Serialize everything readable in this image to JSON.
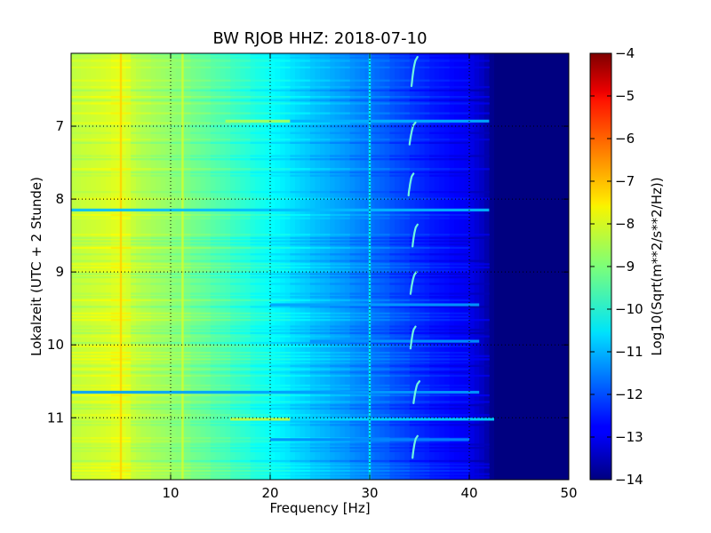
{
  "chart_data": {
    "type": "heatmap",
    "title": "BW RJOB HHZ: 2018-07-10",
    "xlabel": "Frequency [Hz]",
    "ylabel": "Lokalzeit (UTC + 2 Stunde)",
    "xlim": [
      0,
      50
    ],
    "ylim": [
      11.85,
      6.0
    ],
    "y_inverted": true,
    "grid": true,
    "x_ticks": [
      {
        "value": 10,
        "label": "10"
      },
      {
        "value": 20,
        "label": "20"
      },
      {
        "value": 30,
        "label": "30"
      },
      {
        "value": 40,
        "label": "40"
      },
      {
        "value": 50,
        "label": "50"
      }
    ],
    "y_ticks": [
      {
        "value": 7,
        "label": "7"
      },
      {
        "value": 8,
        "label": "8"
      },
      {
        "value": 9,
        "label": "9"
      },
      {
        "value": 10,
        "label": "10"
      },
      {
        "value": 11,
        "label": "11"
      }
    ],
    "colorbar": {
      "label": "Log10(Sqrt(m**2/s**2/Hz))",
      "colormap": "jet",
      "range": [
        -14,
        -4
      ],
      "ticks": [
        {
          "value": -4,
          "label": "−4"
        },
        {
          "value": -5,
          "label": "−5"
        },
        {
          "value": -6,
          "label": "−6"
        },
        {
          "value": -7,
          "label": "−7"
        },
        {
          "value": -8,
          "label": "−8"
        },
        {
          "value": -9,
          "label": "−9"
        },
        {
          "value": -10,
          "label": "−10"
        },
        {
          "value": -11,
          "label": "−11"
        },
        {
          "value": -12,
          "label": "−12"
        },
        {
          "value": -13,
          "label": "−13"
        },
        {
          "value": -14,
          "label": "−14"
        }
      ]
    },
    "spectrum_profile": [
      {
        "f": 0,
        "v": -8.4
      },
      {
        "f": 1,
        "v": -8.3
      },
      {
        "f": 3,
        "v": -8.2
      },
      {
        "f": 5,
        "v": -8.0
      },
      {
        "f": 7,
        "v": -8.5
      },
      {
        "f": 10,
        "v": -8.8
      },
      {
        "f": 13,
        "v": -9.2
      },
      {
        "f": 16,
        "v": -9.6
      },
      {
        "f": 20,
        "v": -10.2
      },
      {
        "f": 24,
        "v": -10.8
      },
      {
        "f": 28,
        "v": -11.3
      },
      {
        "f": 32,
        "v": -11.9
      },
      {
        "f": 36,
        "v": -12.5
      },
      {
        "f": 40,
        "v": -12.9
      },
      {
        "f": 41.5,
        "v": -13.4
      },
      {
        "f": 42.5,
        "v": -14.0
      },
      {
        "f": 50,
        "v": -14.0
      }
    ],
    "narrowband_lines": [
      {
        "f": 5.0,
        "v": -7.3
      },
      {
        "f": 11.2,
        "v": -8.2
      },
      {
        "f": 30.0,
        "v": -10.3
      }
    ],
    "bright_bands": [
      {
        "t": 6.93,
        "f_from": 15.5,
        "f_to": 22,
        "v": -8.6
      },
      {
        "t": 6.93,
        "f_from": 22,
        "f_to": 42,
        "v": -11.0
      },
      {
        "t": 8.15,
        "f_from": 0,
        "f_to": 42,
        "v": -10.9
      },
      {
        "t": 9.45,
        "f_from": 20,
        "f_to": 41,
        "v": -11.2
      },
      {
        "t": 9.95,
        "f_from": 24,
        "f_to": 41,
        "v": -11.3
      },
      {
        "t": 10.65,
        "f_from": 0,
        "f_to": 41,
        "v": -11.2
      },
      {
        "t": 11.02,
        "f_from": 16,
        "f_to": 22,
        "v": -8.3
      },
      {
        "t": 11.02,
        "f_from": 22,
        "f_to": 42.5,
        "v": -10.6
      },
      {
        "t": 11.3,
        "f_from": 20,
        "f_to": 40,
        "v": -11.4
      }
    ],
    "chirps": [
      {
        "t_start": 6.05,
        "t_end": 6.45,
        "f_start": 34.8,
        "f_end": 34.2
      },
      {
        "t_start": 6.95,
        "t_end": 7.25,
        "f_start": 34.6,
        "f_end": 34.0
      },
      {
        "t_start": 7.65,
        "t_end": 7.95,
        "f_start": 34.4,
        "f_end": 33.9
      },
      {
        "t_start": 8.35,
        "t_end": 8.65,
        "f_start": 34.8,
        "f_end": 34.3
      },
      {
        "t_start": 9.0,
        "t_end": 9.3,
        "f_start": 34.7,
        "f_end": 34.1
      },
      {
        "t_start": 9.75,
        "t_end": 10.05,
        "f_start": 34.6,
        "f_end": 34.1
      },
      {
        "t_start": 10.5,
        "t_end": 10.8,
        "f_start": 35.0,
        "f_end": 34.4
      },
      {
        "t_start": 11.25,
        "t_end": 11.55,
        "f_start": 34.8,
        "f_end": 34.3
      }
    ]
  }
}
